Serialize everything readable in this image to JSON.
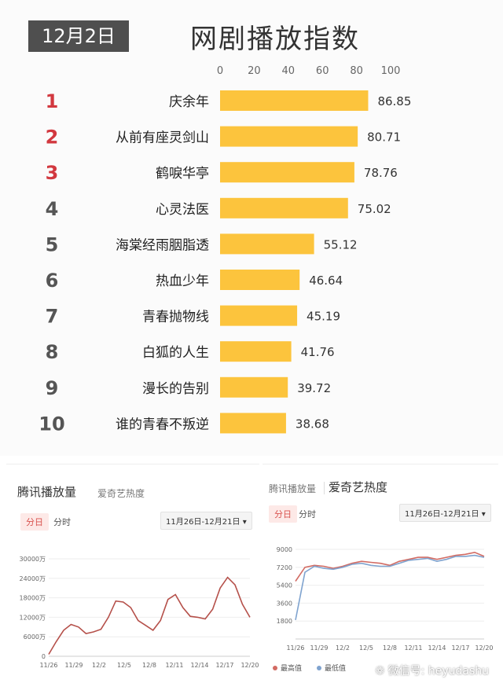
{
  "header": {
    "date": "12月2日",
    "title": "网剧播放指数"
  },
  "chart_data": [
    {
      "type": "bar",
      "title": "网剧播放指数",
      "xlim": [
        0,
        100
      ],
      "xticks": [
        "0",
        "20",
        "40",
        "60",
        "80",
        "100"
      ],
      "ranks": [
        "1",
        "2",
        "3",
        "4",
        "5",
        "6",
        "7",
        "8",
        "9",
        "10"
      ],
      "categories": [
        "庆余年",
        "从前有座灵剑山",
        "鹤唳华亭",
        "心灵法医",
        "海棠经雨胭脂透",
        "热血少年",
        "青春抛物线",
        "白狐的人生",
        "漫长的告别",
        "谁的青春不叛逆"
      ],
      "values": [
        86.85,
        80.71,
        78.76,
        75.02,
        55.12,
        46.64,
        45.19,
        41.76,
        39.72,
        38.68
      ],
      "value_labels": [
        "86.85",
        "80.71",
        "78.76",
        "75.02",
        "55.12",
        "46.64",
        "45.19",
        "41.76",
        "39.72",
        "38.68"
      ],
      "bar_color": "#fcc43d",
      "top3_rank_color": "#d2383f",
      "rank_color": "#555555"
    },
    {
      "type": "line",
      "title": "腾讯播放量",
      "yticks": [
        "0",
        "6000万",
        "12000万",
        "18000万",
        "24000万",
        "30000万"
      ],
      "ylim": [
        0,
        30000
      ],
      "xticks": [
        "11/26",
        "11/29",
        "12/2",
        "12/5",
        "12/8",
        "12/11",
        "12/14",
        "12/17",
        "12/20"
      ],
      "series": [
        {
          "color": "#b5504a",
          "values": [
            600,
            4500,
            8000,
            9800,
            9000,
            7000,
            7500,
            8300,
            12000,
            17000,
            16700,
            15000,
            11000,
            9500,
            8000,
            11000,
            17500,
            19000,
            15000,
            12300,
            12000,
            11500,
            14500,
            21000,
            24300,
            22000,
            16000,
            12000
          ]
        }
      ]
    },
    {
      "type": "line",
      "title": "爱奇艺热度",
      "yticks": [
        "1800",
        "3600",
        "5400",
        "7200",
        "9000"
      ],
      "ylim": [
        0,
        9000
      ],
      "xticks": [
        "11/26",
        "11/29",
        "12/2",
        "12/5",
        "12/8",
        "12/11",
        "12/14",
        "12/17",
        "12/20"
      ],
      "legend_placement": "bottom",
      "series": [
        {
          "name": "最高值",
          "color": "#d26b63",
          "values": [
            5800,
            7200,
            7400,
            7300,
            7100,
            7300,
            7600,
            7800,
            7700,
            7600,
            7400,
            7800,
            8000,
            8200,
            8200,
            8000,
            8200,
            8400,
            8500,
            8700,
            8300
          ]
        },
        {
          "name": "最低值",
          "color": "#7fa3cf",
          "values": [
            1900,
            6700,
            7300,
            7100,
            7000,
            7200,
            7500,
            7600,
            7400,
            7300,
            7300,
            7600,
            7900,
            8000,
            8100,
            7800,
            8000,
            8300,
            8300,
            8400,
            8200
          ]
        }
      ]
    }
  ],
  "tencent_panel": {
    "title": "腾讯播放量",
    "alt_tab": "爱奇艺热度",
    "day_tab": "分日",
    "hour_tab": "分时",
    "date_range": "11月26日-12月21日"
  },
  "iqiyi_panel": {
    "alt_tab": "腾讯播放量",
    "title": "爱奇艺热度",
    "day_tab": "分日",
    "hour_tab": "分时",
    "date_range": "11月26日-12月21日"
  },
  "watermark": "微信号: heyudashu"
}
